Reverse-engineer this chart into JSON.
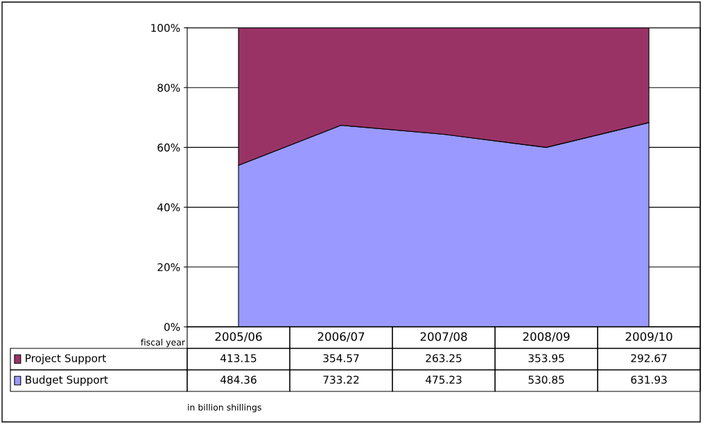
{
  "chart_data": {
    "type": "area",
    "stacked": true,
    "categories": [
      "2005/06",
      "2006/07",
      "2007/08",
      "2008/09",
      "2009/10"
    ],
    "series": [
      {
        "name": "Budget Support",
        "color": "#9999ff",
        "values": [
          54.0,
          67.4,
          64.4,
          60.0,
          68.3
        ]
      },
      {
        "name": "Project Support",
        "color": "#993366",
        "values": [
          46.0,
          32.6,
          35.6,
          40.0,
          31.7
        ]
      }
    ],
    "ylim": [
      0,
      100
    ],
    "yticks": [
      {
        "value": 0,
        "label": "0%"
      },
      {
        "value": 20,
        "label": "20%"
      },
      {
        "value": 40,
        "label": "40%"
      },
      {
        "value": 60,
        "label": "60%"
      },
      {
        "value": 80,
        "label": "80%"
      },
      {
        "value": 100,
        "label": "100%"
      }
    ],
    "grid": "y",
    "tick_labels": "y",
    "legend": "bottom left",
    "annotations": [
      "fiscal year",
      "in billion shillings",
      "413.15",
      "354.57",
      "263.25",
      "353.95",
      "292.67",
      "484.36",
      "733.22",
      "475.23",
      "530.85",
      "631.93"
    ]
  }
}
